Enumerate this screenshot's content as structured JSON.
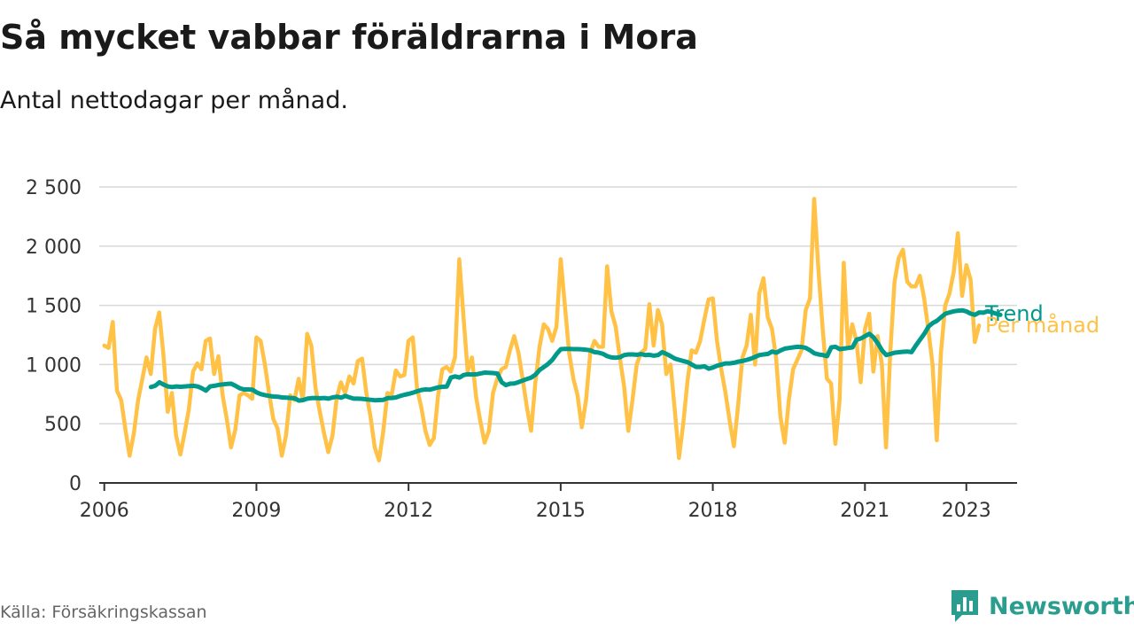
{
  "header": {
    "title": "Så mycket vabbar föräldrarna i Mora",
    "subtitle": "Antal nettodagar per månad."
  },
  "footer": {
    "source": "Källa: Försäkringskassan",
    "brand": "Newsworthy",
    "brand_icon": "bar-chart-chat-icon"
  },
  "colors": {
    "monthly": "#ffc246",
    "trend": "#00998a",
    "grid": "#d9d9d9",
    "axis": "#333333",
    "text": "#333333",
    "brand": "#2a9d8f"
  },
  "chart_data": {
    "type": "line",
    "title": "Så mycket vabbar föräldrarna i Mora",
    "subtitle": "Antal nettodagar per månad.",
    "xlabel": "",
    "ylabel": "",
    "xlim": [
      2005.9,
      2024.0
    ],
    "ylim": [
      0,
      2500
    ],
    "x_ticks": [
      2006,
      2009,
      2012,
      2015,
      2018,
      2021,
      2023
    ],
    "x_tick_labels": [
      "2006",
      "2009",
      "2012",
      "2015",
      "2018",
      "2021",
      "2023"
    ],
    "y_ticks": [
      0,
      500,
      1000,
      1500,
      2000,
      2500
    ],
    "y_tick_labels": [
      "0",
      "500",
      "1 000",
      "1 500",
      "2 000",
      "2 500"
    ],
    "grid": "horizontal",
    "legend": "direct labels at line ends",
    "series": [
      {
        "name": "Per månad",
        "x_start": 2006.0,
        "x_step": 0.08333333,
        "values": [
          1160,
          1140,
          1360,
          780,
          700,
          450,
          230,
          420,
          700,
          880,
          1060,
          920,
          1300,
          1440,
          1080,
          600,
          760,
          400,
          240,
          420,
          620,
          940,
          1010,
          960,
          1200,
          1220,
          920,
          1070,
          740,
          540,
          300,
          450,
          740,
          760,
          740,
          710,
          1230,
          1200,
          1000,
          760,
          540,
          460,
          230,
          400,
          740,
          700,
          880,
          700,
          1260,
          1160,
          800,
          600,
          420,
          260,
          400,
          720,
          850,
          760,
          900,
          840,
          1030,
          1050,
          760,
          560,
          300,
          190,
          430,
          760,
          740,
          950,
          900,
          910,
          1200,
          1230,
          800,
          640,
          440,
          320,
          380,
          740,
          960,
          980,
          940,
          1060,
          1890,
          1400,
          940,
          1060,
          720,
          520,
          340,
          440,
          760,
          880,
          960,
          980,
          1120,
          1240,
          1100,
          880,
          640,
          440,
          840,
          1150,
          1340,
          1300,
          1200,
          1320,
          1890,
          1500,
          1100,
          880,
          740,
          470,
          700,
          1100,
          1200,
          1150,
          1150,
          1830,
          1450,
          1320,
          1060,
          820,
          440,
          700,
          1000,
          1100,
          1130,
          1510,
          1160,
          1460,
          1340,
          920,
          1000,
          620,
          210,
          500,
          860,
          1120,
          1100,
          1200,
          1380,
          1550,
          1560,
          1200,
          960,
          760,
          520,
          310,
          660,
          1060,
          1160,
          1420,
          1000,
          1600,
          1730,
          1400,
          1300,
          1050,
          560,
          340,
          700,
          960,
          1040,
          1120,
          1460,
          1560,
          2400,
          1800,
          1300,
          880,
          840,
          330,
          700,
          1860,
          1140,
          1340,
          1200,
          850,
          1300,
          1430,
          940,
          1240,
          1000,
          300,
          1100,
          1700,
          1900,
          1970,
          1700,
          1660,
          1660,
          1750,
          1560,
          1300,
          1000,
          360,
          1100,
          1500,
          1600,
          1780,
          2110,
          1580,
          1840,
          1720,
          1190,
          1330
        ]
      },
      {
        "name": "Trend",
        "x_start": 2006.92,
        "x_step": 0.08333333,
        "values": [
          810,
          820,
          850,
          830,
          815,
          810,
          815,
          812,
          815,
          818,
          820,
          815,
          800,
          780,
          815,
          820,
          828,
          832,
          836,
          838,
          820,
          800,
          790,
          790,
          788,
          765,
          750,
          742,
          735,
          730,
          728,
          722,
          720,
          718,
          715,
          695,
          700,
          712,
          716,
          718,
          715,
          718,
          712,
          722,
          728,
          720,
          735,
          722,
          712,
          712,
          710,
          706,
          702,
          698,
          700,
          702,
          716,
          718,
          722,
          735,
          745,
          752,
          762,
          775,
          785,
          790,
          788,
          798,
          808,
          812,
          814,
          890,
          900,
          890,
          912,
          918,
          916,
          918,
          925,
          932,
          930,
          928,
          924,
          850,
          826,
          838,
          840,
          852,
          865,
          878,
          890,
          915,
          955,
          980,
          1005,
          1040,
          1090,
          1130,
          1132,
          1132,
          1130,
          1130,
          1128,
          1125,
          1120,
          1105,
          1100,
          1090,
          1070,
          1060,
          1058,
          1062,
          1080,
          1085,
          1085,
          1082,
          1088,
          1080,
          1082,
          1075,
          1080,
          1105,
          1090,
          1070,
          1050,
          1040,
          1030,
          1020,
          1000,
          980,
          980,
          985,
          965,
          975,
          990,
          1000,
          1010,
          1010,
          1015,
          1025,
          1030,
          1040,
          1050,
          1065,
          1080,
          1085,
          1090,
          1110,
          1100,
          1120,
          1135,
          1140,
          1145,
          1150,
          1148,
          1140,
          1120,
          1095,
          1085,
          1080,
          1070,
          1145,
          1150,
          1130,
          1135,
          1140,
          1145,
          1210,
          1220,
          1240,
          1260,
          1230,
          1180,
          1120,
          1080,
          1090,
          1100,
          1104,
          1108,
          1110,
          1105,
          1160,
          1210,
          1260,
          1320,
          1350,
          1370,
          1400,
          1430,
          1440,
          1450,
          1455,
          1458,
          1448,
          1430,
          1420,
          1440,
          1438,
          1450,
          1442,
          1430,
          1420
        ]
      }
    ]
  }
}
